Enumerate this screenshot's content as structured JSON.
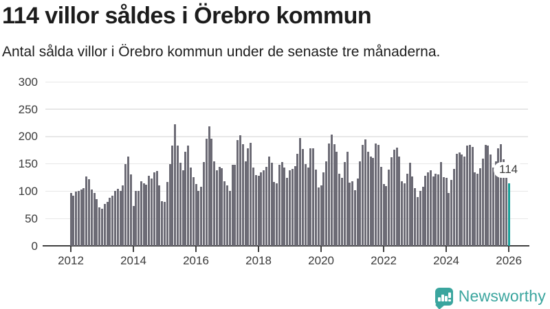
{
  "title": "114 villor såldes i Örebro kommun",
  "subtitle": "Antal sålda villor i Örebro kommun under de senaste tre månaderna.",
  "annotation": {
    "label": "114"
  },
  "branding": {
    "name": "Newsworthy",
    "icon": "newsworthy-bubble-barchart-icon",
    "color": "#3aa59e"
  },
  "colors": {
    "bar": "#6c6b75",
    "highlight": "#18a099",
    "gridline": "#e7e7e7",
    "axis": "#3f3f3f",
    "title_text": "#1c1c1c",
    "tick_text": "#3a3a3a"
  },
  "chart_data": {
    "type": "bar",
    "title": "114 villor såldes i Örebro kommun",
    "subtitle": "Antal sålda villor i Örebro kommun under de senaste tre månaderna.",
    "xlabel": "",
    "ylabel": "",
    "ylim": [
      0,
      300
    ],
    "grid": "horizontal",
    "legend": "none",
    "frequency": "monthly",
    "x_start": "2012-01",
    "x_end": "2026-01",
    "y_ticks": [
      0,
      50,
      100,
      150,
      200,
      250,
      300
    ],
    "x_tick_labels": [
      "2012",
      "2014",
      "2016",
      "2018",
      "2020",
      "2022",
      "2024",
      "2026"
    ],
    "highlight_last": true,
    "highlight_last_value": 114,
    "values": [
      97,
      92,
      99,
      101,
      103,
      106,
      127,
      122,
      103,
      97,
      86,
      71,
      68,
      77,
      80,
      88,
      92,
      100,
      104,
      100,
      111,
      149,
      163,
      131,
      73,
      100,
      100,
      118,
      115,
      112,
      128,
      123,
      134,
      137,
      111,
      82,
      81,
      117,
      150,
      183,
      222,
      183,
      152,
      138,
      172,
      184,
      143,
      126,
      113,
      101,
      108,
      153,
      196,
      219,
      196,
      155,
      138,
      145,
      142,
      118,
      111,
      100,
      148,
      148,
      193,
      203,
      186,
      155,
      178,
      188,
      143,
      129,
      128,
      134,
      138,
      145,
      164,
      152,
      117,
      115,
      148,
      153,
      143,
      125,
      138,
      141,
      146,
      168,
      198,
      177,
      149,
      143,
      178,
      178,
      139,
      107,
      111,
      134,
      155,
      187,
      204,
      186,
      172,
      132,
      125,
      153,
      172,
      116,
      118,
      102,
      123,
      155,
      185,
      195,
      172,
      164,
      161,
      187,
      185,
      145,
      113,
      110,
      140,
      162,
      176,
      180,
      163,
      118,
      115,
      132,
      152,
      127,
      106,
      89,
      101,
      108,
      128,
      134,
      138,
      127,
      132,
      131,
      153,
      126,
      125,
      97,
      121,
      141,
      169,
      171,
      167,
      163,
      184,
      185,
      181,
      134,
      132,
      142,
      160,
      185,
      183,
      167,
      143,
      155,
      179,
      186,
      158,
      139,
      114
    ]
  }
}
